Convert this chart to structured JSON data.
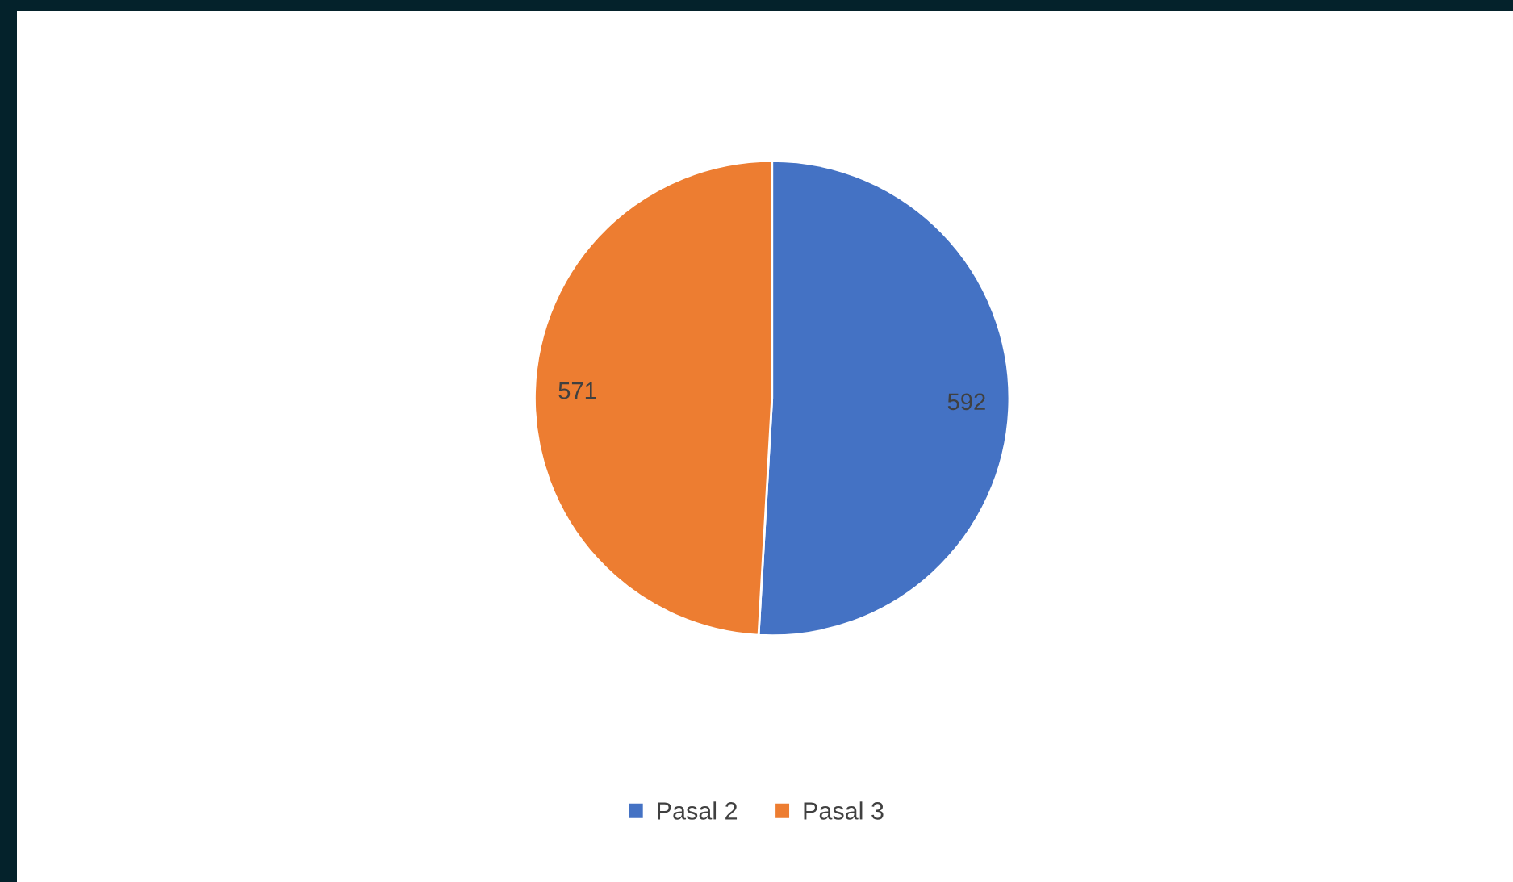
{
  "chart_data": {
    "type": "pie",
    "categories": [
      "Pasal 2",
      "Pasal 3"
    ],
    "values": [
      592,
      571
    ],
    "colors": [
      "#4472c4",
      "#ed7d31"
    ],
    "data_labels": true,
    "legend": "bottom"
  }
}
